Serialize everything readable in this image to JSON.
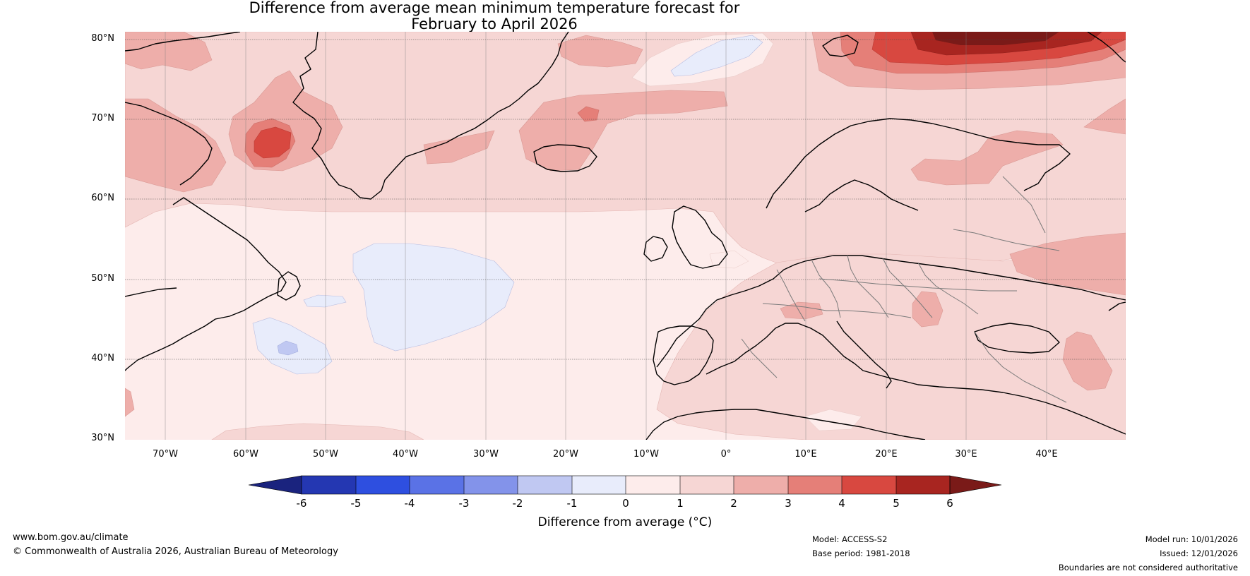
{
  "title": {
    "line1": "Difference from average mean minimum temperature forecast for",
    "line2": "February to April 2026"
  },
  "map": {
    "region": "North Atlantic and Europe",
    "latitude_labels": [
      "80°N",
      "70°N",
      "60°N",
      "50°N",
      "40°N",
      "30°N"
    ],
    "longitude_labels": [
      "70°W",
      "60°W",
      "50°W",
      "40°W",
      "30°W",
      "20°W",
      "10°W",
      "0°",
      "10°E",
      "20°E",
      "30°E",
      "40°E"
    ]
  },
  "colorbar": {
    "ticks": [
      "-6",
      "-5",
      "-4",
      "-3",
      "-2",
      "-1",
      "0",
      "1",
      "2",
      "3",
      "4",
      "5",
      "6"
    ],
    "colors": [
      "#1a237e",
      "#2437b2",
      "#2e4fe0",
      "#5a72e6",
      "#8393ea",
      "#c0c8f2",
      "#e8ecfb",
      "#fdeceb",
      "#f6d6d4",
      "#eeaeaa",
      "#e57f78",
      "#d84840",
      "#a82520",
      "#7a1a18"
    ],
    "label": "Difference from average (°C)"
  },
  "footer": {
    "website": "www.bom.gov.au/climate",
    "copyright": "© Commonwealth of Australia 2026, Australian Bureau of Meteorology",
    "model": "Model: ACCESS-S2",
    "base_period": "Base period: 1981-2018",
    "model_run": "Model run: 10/01/2026",
    "issued": "Issued: 12/01/2026",
    "disclaimer": "Boundaries are not considered authoritative"
  }
}
